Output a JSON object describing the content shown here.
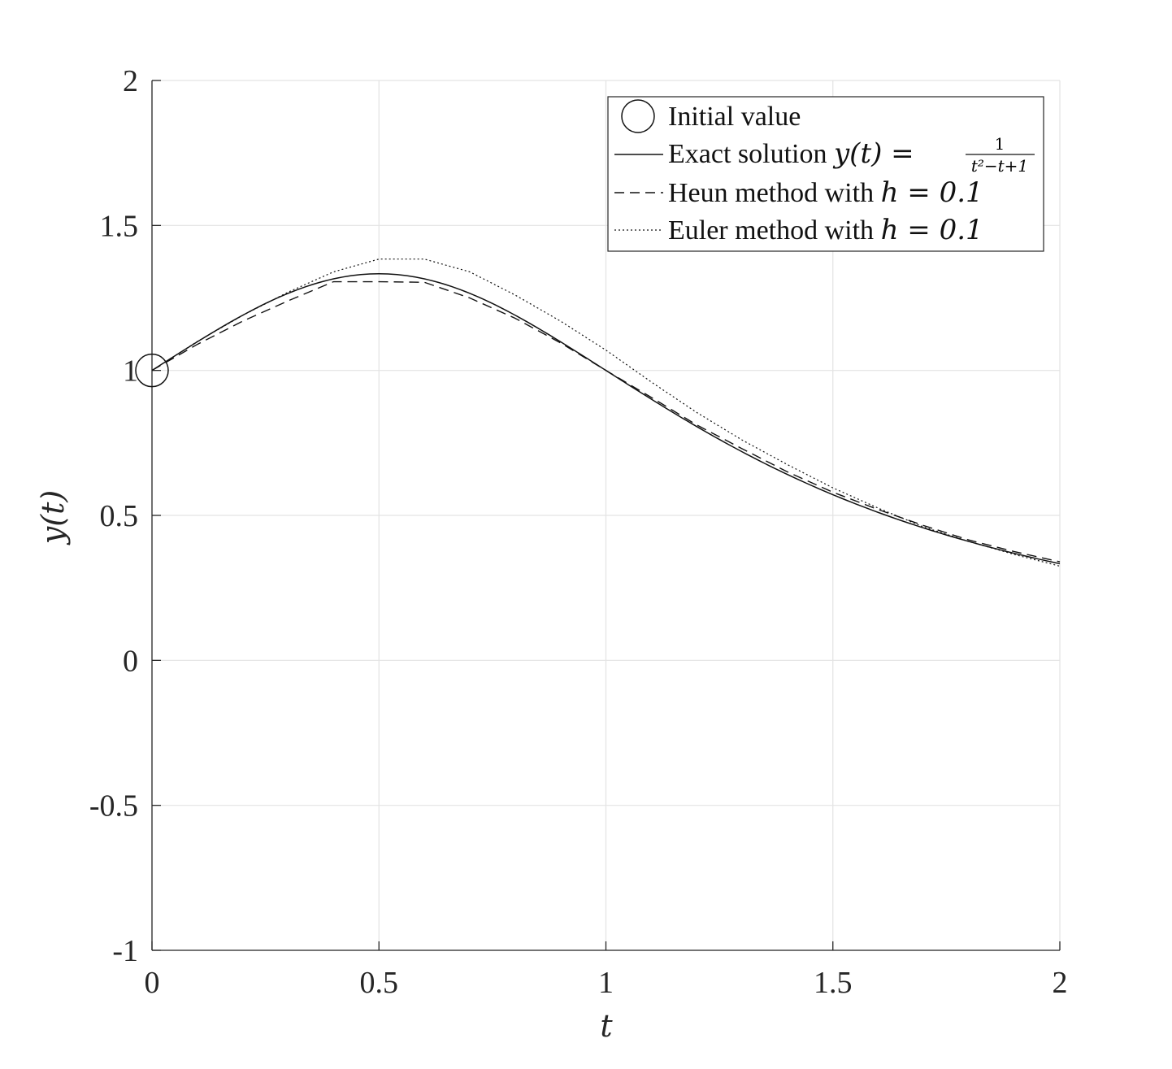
{
  "chart_data": {
    "type": "line",
    "xlabel": "t",
    "ylabel": "y(t)",
    "xlim": [
      0,
      2
    ],
    "ylim": [
      -1,
      2
    ],
    "xticks": [
      "0",
      "0.5",
      "1",
      "1.5",
      "2"
    ],
    "yticks": [
      "-1",
      "-0.5",
      "0",
      "0.5",
      "1",
      "1.5",
      "2"
    ],
    "grid": true,
    "legend_position": "top-right",
    "legend": {
      "initial": "Initial value",
      "exact_prefix": "Exact solution ",
      "exact_math": "y(t) =",
      "exact_num": "1",
      "exact_den": "t²−t+1",
      "heun_prefix": "Heun method with ",
      "heun_math": "h = 0.1",
      "euler_prefix": "Euler method with ",
      "euler_math": "h = 0.1"
    },
    "initial_point": {
      "x": 0,
      "y": 1
    },
    "series": [
      {
        "name": "Heun method with h = 0.1",
        "style": "dashed",
        "x": [
          0,
          0.1,
          0.2,
          0.3,
          0.4,
          0.5,
          0.6,
          0.7,
          0.8,
          0.9,
          1.0,
          1.1,
          1.2,
          1.3,
          1.4,
          1.5,
          1.6,
          1.7,
          1.8,
          1.9,
          2.0
        ],
        "y": [
          1.0,
          1.09,
          1.17,
          1.24,
          1.306,
          1.306,
          1.304,
          1.25,
          1.18,
          1.095,
          1.0,
          0.907,
          0.812,
          0.73,
          0.65,
          0.58,
          0.52,
          0.465,
          0.415,
          0.375,
          0.34
        ]
      },
      {
        "name": "Euler method with h = 0.1",
        "style": "dotted",
        "x": [
          0,
          0.1,
          0.2,
          0.3,
          0.4,
          0.5,
          0.6,
          0.7,
          0.8,
          0.9,
          1.0,
          1.1,
          1.2,
          1.3,
          1.4,
          1.5,
          1.6,
          1.7,
          1.8,
          1.9,
          2.0
        ],
        "y": [
          1.0,
          1.1,
          1.19,
          1.27,
          1.34,
          1.384,
          1.384,
          1.34,
          1.26,
          1.17,
          1.07,
          0.96,
          0.855,
          0.76,
          0.675,
          0.595,
          0.525,
          0.46,
          0.41,
          0.365,
          0.325
        ]
      }
    ]
  }
}
